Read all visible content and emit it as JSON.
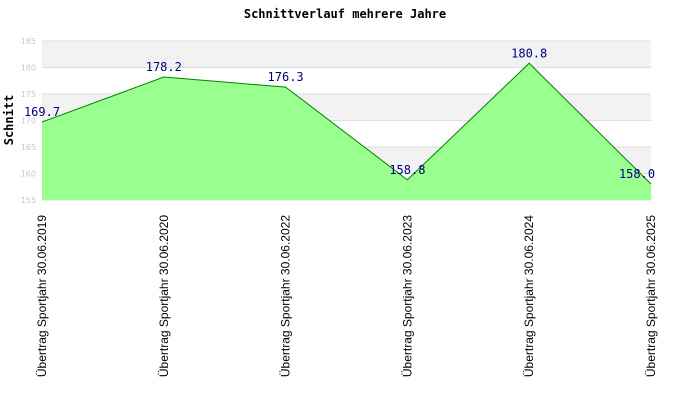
{
  "chart_data": {
    "type": "area",
    "title": "Schnittverlauf mehrere Jahre",
    "xlabel": "",
    "ylabel": "Schnitt",
    "categories": [
      "Übertrag Sportjahr 30.06.2019",
      "Übertrag Sportjahr 30.06.2020",
      "Übertrag Sportjahr 30.06.2022",
      "Übertrag Sportjahr 30.06.2023",
      "Übertrag Sportjahr 30.06.2024",
      "Übertrag Sportjahr 30.06.2025"
    ],
    "values": [
      169.7,
      178.2,
      176.3,
      158.8,
      180.8,
      158.0
    ],
    "data_labels": [
      "169.7",
      "178.2",
      "176.3",
      "158.8",
      "180.8",
      "158.0"
    ],
    "ylim": [
      155,
      185
    ],
    "yticks": [
      155,
      160,
      165,
      170,
      175,
      180,
      185
    ],
    "ytick_labels": [
      "155",
      "160",
      "165",
      "170",
      "175",
      "180",
      "185"
    ],
    "grid": true,
    "legend": "none",
    "colors": {
      "fill": "#99ff8f",
      "line": "#008000",
      "band": "#f2f2f2",
      "grid": "#dddddd",
      "data_label": "#000080",
      "tick_label": "#c8c8c8"
    }
  }
}
